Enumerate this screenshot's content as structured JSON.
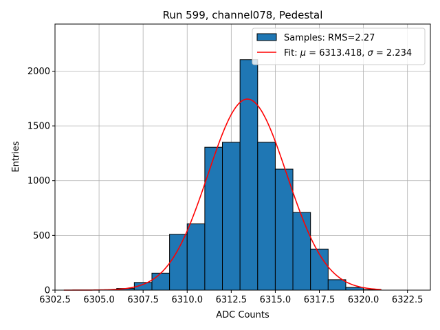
{
  "chart_data": {
    "type": "bar",
    "title": "Run 599, channel078, Pedestal",
    "xlabel": "ADC Counts",
    "ylabel": "Entries",
    "xlim": [
      6302.5,
      6323.8
    ],
    "ylim": [
      0,
      2430
    ],
    "x_ticks": [
      6302.5,
      6305.0,
      6307.5,
      6310.0,
      6312.5,
      6315.0,
      6317.5,
      6320.0,
      6322.5
    ],
    "x_tick_labels": [
      "6302.5",
      "6305.0",
      "6307.5",
      "6310.0",
      "6312.5",
      "6315.0",
      "6317.5",
      "6320.0",
      "6322.5"
    ],
    "y_ticks": [
      0,
      500,
      1000,
      1500,
      2000
    ],
    "y_tick_labels": [
      "0",
      "500",
      "1000",
      "1500",
      "2000"
    ],
    "grid": true,
    "legend_position": "top-right",
    "colors": {
      "bar_fill": "#1f77b4",
      "bar_edge": "#000000",
      "fit_line": "#ff0000",
      "grid": "#b0b0b0"
    },
    "histogram": {
      "label": "Samples: RMS=2.27",
      "bin_edges": [
        6306,
        6307,
        6308,
        6309,
        6310,
        6311,
        6312,
        6313,
        6314,
        6315,
        6316,
        6317,
        6318,
        6319,
        6320,
        6321
      ],
      "counts": [
        15,
        70,
        155,
        510,
        605,
        1305,
        1350,
        2105,
        1350,
        1105,
        710,
        375,
        95,
        25,
        5
      ]
    },
    "fit": {
      "label_prefix": "Fit: ",
      "mu_symbol": "μ",
      "mu_text": " = 6313.418, ",
      "sigma_symbol": "σ",
      "sigma_text": " = 2.234",
      "mu": 6313.418,
      "sigma": 2.234,
      "amplitude": 1745,
      "x_range": [
        6303.0,
        6321.0
      ]
    }
  }
}
